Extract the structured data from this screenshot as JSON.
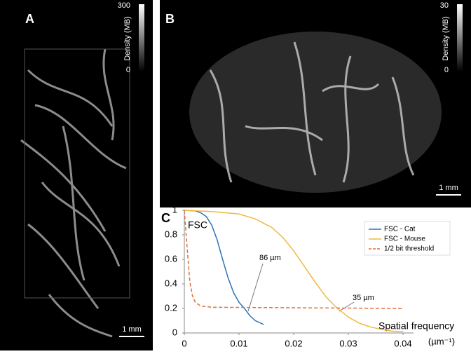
{
  "panels": {
    "a": {
      "label": "A",
      "colorbar_label": "Density (MB)",
      "colorbar_max": "300",
      "colorbar_min": "0",
      "scale_bar": "1 mm"
    },
    "b": {
      "label": "B",
      "colorbar_label": "Density (MB)",
      "colorbar_max": "30",
      "colorbar_min": "0",
      "scale_bar": "1 mm"
    }
  },
  "chart_data": {
    "type": "line",
    "panel_label": "C",
    "y_label": "FSC",
    "x_label": "Spatial frequency",
    "x_unit": "(µm⁻¹)",
    "xlim": [
      0,
      0.04
    ],
    "ylim": [
      0,
      1
    ],
    "xticks": [
      0,
      0.01,
      0.02,
      0.03,
      0.04
    ],
    "yticks": [
      0,
      0.2,
      0.4,
      0.6,
      0.8,
      1
    ],
    "annotations": [
      "86 µm",
      "35 µm"
    ],
    "series": [
      {
        "name": "FSC - Cat",
        "color": "#2e75b6",
        "dash": false,
        "x": [
          0,
          0.002,
          0.003,
          0.004,
          0.005,
          0.006,
          0.007,
          0.008,
          0.009,
          0.01,
          0.011,
          0.012,
          0.013,
          0.0145
        ],
        "values": [
          1,
          0.995,
          0.98,
          0.95,
          0.88,
          0.76,
          0.6,
          0.45,
          0.33,
          0.25,
          0.2,
          0.14,
          0.1,
          0.07
        ]
      },
      {
        "name": "FSC - Mouse",
        "color": "#f0b93a",
        "dash": false,
        "x": [
          0,
          0.005,
          0.01,
          0.013,
          0.016,
          0.018,
          0.02,
          0.022,
          0.024,
          0.026,
          0.028,
          0.03,
          0.032,
          0.034,
          0.036,
          0.038,
          0.04
        ],
        "values": [
          1,
          0.99,
          0.97,
          0.93,
          0.86,
          0.78,
          0.67,
          0.54,
          0.41,
          0.29,
          0.2,
          0.13,
          0.08,
          0.05,
          0.03,
          0.015,
          0.01
        ]
      },
      {
        "name": "1/2 bit threshold",
        "color": "#e0703a",
        "dash": true,
        "x": [
          0,
          0.0005,
          0.001,
          0.0015,
          0.002,
          0.003,
          0.005,
          0.04
        ],
        "values": [
          1,
          0.7,
          0.42,
          0.3,
          0.25,
          0.22,
          0.21,
          0.2
        ]
      }
    ]
  }
}
